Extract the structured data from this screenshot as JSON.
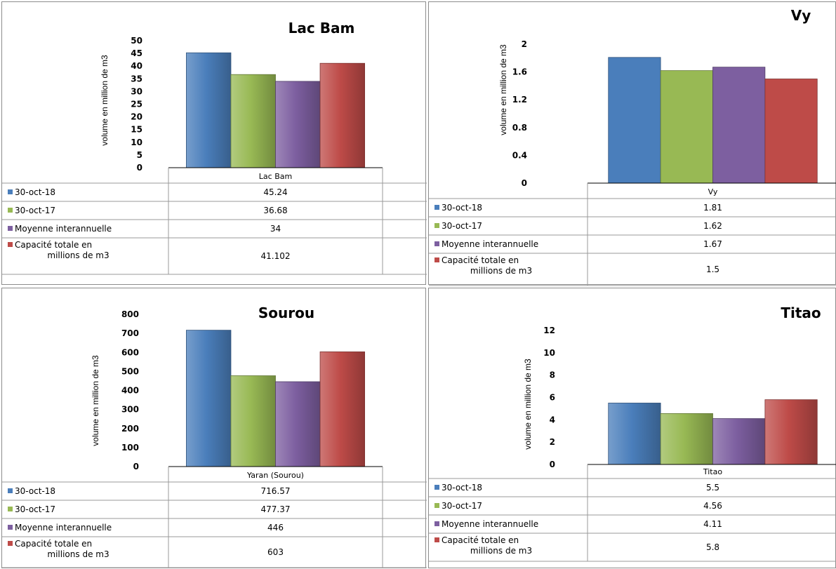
{
  "chart_data": [
    {
      "type": "bar",
      "title": "Lac Bam",
      "ylabel": "volume en million de m3",
      "categories": [
        "Lac Bam"
      ],
      "ylim": [
        0,
        50
      ],
      "yticks": [
        "0",
        "5",
        "10",
        "15",
        "20",
        "25",
        "30",
        "35",
        "40",
        "45",
        "50"
      ],
      "series": [
        {
          "name": "30-oct-18",
          "values": [
            45.24
          ],
          "label": "45.24",
          "color": "#4a7ebb"
        },
        {
          "name": "30-oct-17",
          "values": [
            36.68
          ],
          "label": "36.68",
          "color": "#98b954"
        },
        {
          "name": "Moyenne interannuelle",
          "values": [
            34
          ],
          "label": "34",
          "color": "#7d5fa0"
        },
        {
          "name": "Capacité totale en millions de m3",
          "values": [
            41.102
          ],
          "label": "41.102",
          "color": "#be4b48"
        }
      ]
    },
    {
      "type": "bar",
      "title": "Vy",
      "ylabel": "volume en million de m3",
      "categories": [
        "Vy"
      ],
      "ylim": [
        0,
        2
      ],
      "yticks": [
        "0",
        "0.4",
        "0.8",
        "1.2",
        "1.6",
        "2"
      ],
      "series": [
        {
          "name": "30-oct-18",
          "values": [
            1.81
          ],
          "label": "1.81",
          "color": "#4a7ebb"
        },
        {
          "name": "30-oct-17",
          "values": [
            1.62
          ],
          "label": "1.62",
          "color": "#98b954"
        },
        {
          "name": "Moyenne interannuelle",
          "values": [
            1.67
          ],
          "label": "1.67",
          "color": "#7d5fa0"
        },
        {
          "name": "Capacité totale en millions de m3",
          "values": [
            1.5
          ],
          "label": "1.5",
          "color": "#be4b48"
        }
      ]
    },
    {
      "type": "bar",
      "title": "Sourou",
      "ylabel": "volume en million de m3",
      "categories": [
        "Yaran (Sourou)"
      ],
      "ylim": [
        0,
        800
      ],
      "yticks": [
        "0",
        "100",
        "200",
        "300",
        "400",
        "500",
        "600",
        "700",
        "800"
      ],
      "series": [
        {
          "name": "30-oct-18",
          "values": [
            716.57
          ],
          "label": "716.57",
          "color": "#4a7ebb"
        },
        {
          "name": "30-oct-17",
          "values": [
            477.37
          ],
          "label": "477.37",
          "color": "#98b954"
        },
        {
          "name": "Moyenne interannuelle",
          "values": [
            446
          ],
          "label": "446",
          "color": "#7d5fa0"
        },
        {
          "name": "Capacité totale en millions de m3",
          "values": [
            603
          ],
          "label": "603",
          "color": "#be4b48"
        }
      ]
    },
    {
      "type": "bar",
      "title": "Titao",
      "ylabel": "volume en million de m3",
      "categories": [
        "Titao"
      ],
      "ylim": [
        0,
        12
      ],
      "yticks": [
        "0",
        "2",
        "4",
        "6",
        "8",
        "10",
        "12"
      ],
      "series": [
        {
          "name": "30-oct-18",
          "values": [
            5.5
          ],
          "label": "5.5",
          "color": "#4a7ebb"
        },
        {
          "name": "30-oct-17",
          "values": [
            4.56
          ],
          "label": "4.56",
          "color": "#98b954"
        },
        {
          "name": "Moyenne interannuelle",
          "values": [
            4.11
          ],
          "label": "4.11",
          "color": "#7d5fa0"
        },
        {
          "name": "Capacité totale en millions de m3",
          "values": [
            5.8
          ],
          "label": "5.8",
          "color": "#be4b48"
        }
      ]
    }
  ]
}
